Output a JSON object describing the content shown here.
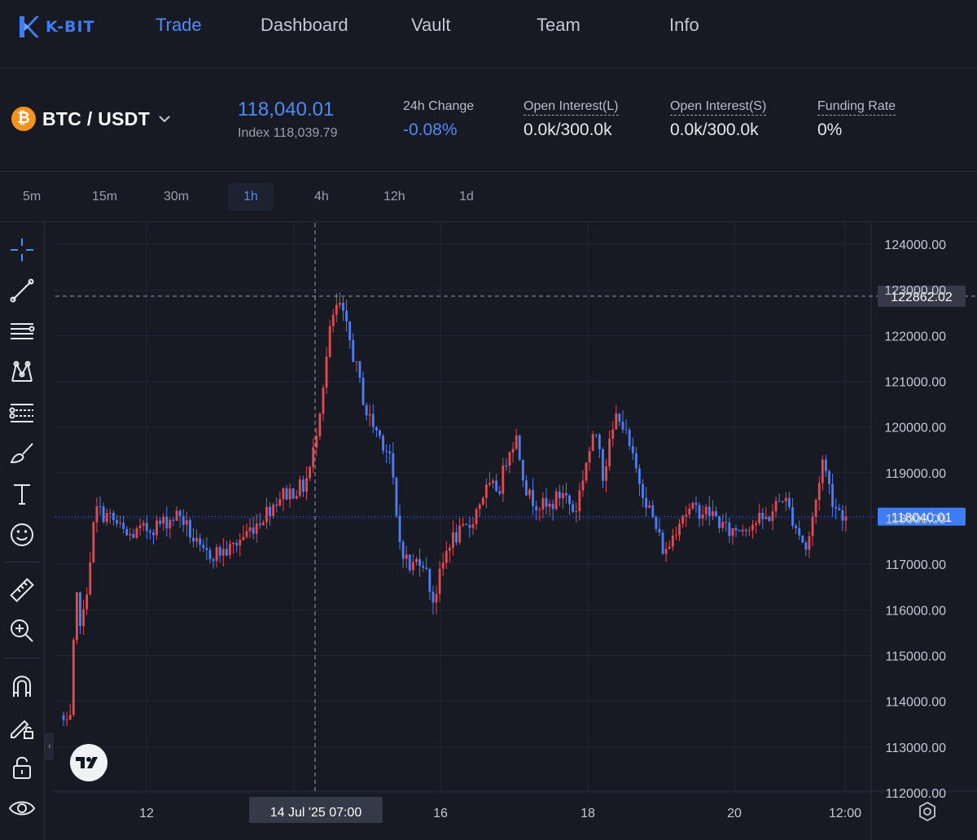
{
  "brand": {
    "name": "K-BIT",
    "accent": "#3f7df6"
  },
  "nav": {
    "items": [
      {
        "label": "Trade",
        "active": true
      },
      {
        "label": "Dashboard",
        "active": false
      },
      {
        "label": "Vault",
        "active": false
      },
      {
        "label": "Team",
        "active": false
      },
      {
        "label": "Info",
        "active": false
      }
    ]
  },
  "ticker": {
    "coin_icon": "bitcoin-icon",
    "coin_symbol": "₿",
    "pair": "BTC / USDT",
    "price": "118,040.01",
    "index": "Index 118,039.79",
    "change_label": "24h Change",
    "change_value": "-0.08%",
    "oi_long_label": "Open Interest(L)",
    "oi_long_value": "0.0k/300.0k",
    "oi_short_label": "Open Interest(S)",
    "oi_short_value": "0.0k/300.0k",
    "funding_label": "Funding Rate",
    "funding_value": "0%"
  },
  "timeframes": {
    "items": [
      "5m",
      "15m",
      "30m",
      "1h",
      "4h",
      "12h",
      "1d"
    ],
    "selected": "1h"
  },
  "toolbar": {
    "tools": [
      "crosshair-icon",
      "trend-line-icon",
      "horizontal-lines-icon",
      "pattern-icon",
      "fib-levels-icon",
      "brush-icon",
      "text-tool-icon",
      "emoji-icon",
      "ruler-icon",
      "zoom-in-icon",
      "magnet-icon",
      "lock-drawing-icon",
      "lock-icon",
      "eye-icon"
    ]
  },
  "colors": {
    "up": "#e5484d",
    "down": "#4d7cf5",
    "background": "#171923",
    "grid": "#232634",
    "last_price_tag": "#3f7df6",
    "crosshair_tag": "#363a48"
  },
  "chart_data": {
    "type": "candlestick",
    "interval": "1h",
    "y_axis": {
      "min": 112000,
      "max": 124000,
      "ticks": [
        "124000.00",
        "123000.00",
        "122000.00",
        "121000.00",
        "120000.00",
        "119000.00",
        "118000.00",
        "117000.00",
        "116000.00",
        "115000.00",
        "114000.00",
        "113000.00",
        "112000.00"
      ]
    },
    "x_axis": {
      "ticks": [
        "12",
        "16",
        "18",
        "20",
        "12:00"
      ],
      "crosshair_label": "14 Jul '25   07:00"
    },
    "last_price": "118040.01",
    "crosshair_price": "122862.02",
    "grid": true,
    "anchors": [
      {
        "t": 0,
        "p": 113700
      },
      {
        "t": 0.012,
        "p": 113300
      },
      {
        "t": 0.02,
        "p": 116300
      },
      {
        "t": 0.028,
        "p": 115600
      },
      {
        "t": 0.045,
        "p": 118200
      },
      {
        "t": 0.065,
        "p": 118000
      },
      {
        "t": 0.085,
        "p": 117600
      },
      {
        "t": 0.13,
        "p": 117900
      },
      {
        "t": 0.152,
        "p": 118100
      },
      {
        "t": 0.18,
        "p": 117200
      },
      {
        "t": 0.215,
        "p": 117300
      },
      {
        "t": 0.255,
        "p": 118000
      },
      {
        "t": 0.28,
        "p": 118500
      },
      {
        "t": 0.31,
        "p": 118700
      },
      {
        "t": 0.32,
        "p": 119200
      },
      {
        "t": 0.335,
        "p": 121000
      },
      {
        "t": 0.345,
        "p": 122300
      },
      {
        "t": 0.355,
        "p": 122700
      },
      {
        "t": 0.37,
        "p": 121800
      },
      {
        "t": 0.39,
        "p": 120300
      },
      {
        "t": 0.42,
        "p": 119400
      },
      {
        "t": 0.43,
        "p": 117600
      },
      {
        "t": 0.445,
        "p": 116900
      },
      {
        "t": 0.46,
        "p": 117200
      },
      {
        "t": 0.475,
        "p": 116200
      },
      {
        "t": 0.495,
        "p": 117500
      },
      {
        "t": 0.52,
        "p": 117800
      },
      {
        "t": 0.54,
        "p": 118600
      },
      {
        "t": 0.56,
        "p": 118700
      },
      {
        "t": 0.57,
        "p": 119500
      },
      {
        "t": 0.58,
        "p": 119800
      },
      {
        "t": 0.595,
        "p": 118500
      },
      {
        "t": 0.62,
        "p": 118200
      },
      {
        "t": 0.64,
        "p": 118600
      },
      {
        "t": 0.655,
        "p": 118100
      },
      {
        "t": 0.67,
        "p": 119300
      },
      {
        "t": 0.685,
        "p": 120000
      },
      {
        "t": 0.69,
        "p": 118900
      },
      {
        "t": 0.71,
        "p": 120400
      },
      {
        "t": 0.73,
        "p": 119200
      },
      {
        "t": 0.75,
        "p": 118200
      },
      {
        "t": 0.77,
        "p": 117200
      },
      {
        "t": 0.79,
        "p": 118100
      },
      {
        "t": 0.81,
        "p": 118200
      },
      {
        "t": 0.83,
        "p": 118100
      },
      {
        "t": 0.85,
        "p": 117700
      },
      {
        "t": 0.88,
        "p": 117900
      },
      {
        "t": 0.9,
        "p": 118000
      },
      {
        "t": 0.92,
        "p": 118500
      },
      {
        "t": 0.935,
        "p": 117900
      },
      {
        "t": 0.95,
        "p": 117300
      },
      {
        "t": 0.96,
        "p": 118200
      },
      {
        "t": 0.97,
        "p": 119300
      },
      {
        "t": 0.985,
        "p": 118300
      },
      {
        "t": 1.0,
        "p": 118040
      }
    ]
  }
}
